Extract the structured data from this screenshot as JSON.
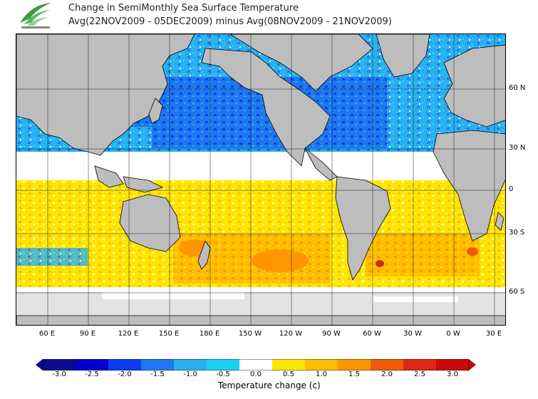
{
  "header": {
    "logo": {
      "name": "observatory-logo-icon"
    },
    "title_line1": "Change in SemiMonthly Sea Surface Temperature",
    "title_line2": "Avg(22NOV2009 - 05DEC2009) minus Avg(08NOV2009 - 21NOV2009)"
  },
  "map": {
    "lat_labels": [
      "60 N",
      "30 N",
      "0",
      "30 S",
      "60 S"
    ],
    "lon_labels": [
      "60 E",
      "90 E",
      "120 E",
      "150 E",
      "180 E",
      "150 W",
      "120 W",
      "90 W",
      "60 W",
      "30 W",
      "0 W",
      "30 E"
    ],
    "colors": {
      "land": "#bdbdbd",
      "ice": "#e3e3e3",
      "ocean_neutral": "#ffffff",
      "grid": "#000000"
    }
  },
  "colorbar": {
    "labels": [
      "-3.0",
      "-2.5",
      "-2.0",
      "-1.5",
      "-1.0",
      "-0.5",
      "0.0",
      "0.5",
      "1.0",
      "1.5",
      "2.0",
      "2.5",
      "3.0"
    ],
    "colors": [
      "#0a0a8c",
      "#0000c8",
      "#0a3cf0",
      "#1e78f0",
      "#2ab0f0",
      "#1ecff5",
      "#ffffff",
      "#ffe600",
      "#ffbe00",
      "#ff9600",
      "#f05a0a",
      "#dc2814",
      "#c80a0a"
    ],
    "title": "Temperature change  (c)"
  }
}
